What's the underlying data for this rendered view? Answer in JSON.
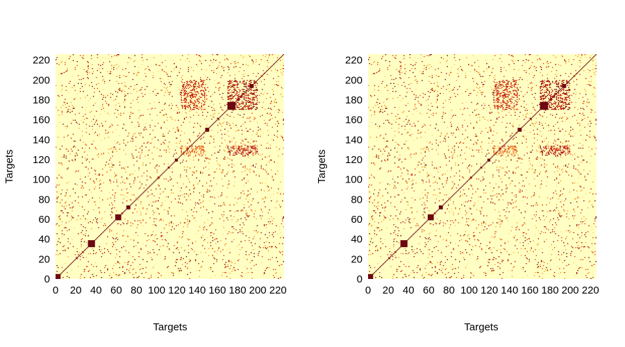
{
  "chart_data": [
    {
      "type": "heatmap",
      "panel": "left",
      "xlabel": "Targets",
      "ylabel": "Targets",
      "xlim": [
        0,
        226
      ],
      "ylim": [
        0,
        226
      ],
      "xticks": [
        0,
        20,
        40,
        60,
        80,
        100,
        120,
        140,
        160,
        180,
        200,
        220
      ],
      "yticks": [
        0,
        20,
        40,
        60,
        80,
        100,
        120,
        140,
        160,
        180,
        200,
        220
      ],
      "colormap": [
        "#ffffc4",
        "#fcd96a",
        "#f79a2a",
        "#e3451b",
        "#b5120f",
        "#6e0711"
      ],
      "diagonal": true,
      "dark_blocks": [
        [
          0,
          5
        ],
        [
          32,
          39
        ],
        [
          59,
          65
        ],
        [
          70,
          74
        ],
        [
          118,
          121
        ],
        [
          148,
          152
        ],
        [
          170,
          178
        ],
        [
          192,
          196
        ]
      ],
      "hot_clusters": [
        {
          "x": [
            124,
            148
          ],
          "y": [
            170,
            200
          ],
          "level": 0.78
        },
        {
          "x": [
            170,
            200
          ],
          "y": [
            170,
            200
          ],
          "level": 0.9
        },
        {
          "x": [
            170,
            200
          ],
          "y": [
            124,
            134
          ],
          "level": 0.85
        },
        {
          "x": [
            124,
            148
          ],
          "y": [
            124,
            134
          ],
          "level": 0.6
        }
      ]
    },
    {
      "type": "heatmap",
      "panel": "right",
      "xlabel": "Targets",
      "ylabel": "Targets",
      "xlim": [
        0,
        226
      ],
      "ylim": [
        0,
        226
      ],
      "xticks": [
        0,
        20,
        40,
        60,
        80,
        100,
        120,
        140,
        160,
        180,
        200,
        220
      ],
      "yticks": [
        0,
        20,
        40,
        60,
        80,
        100,
        120,
        140,
        160,
        180,
        200,
        220
      ],
      "colormap": [
        "#ffffc4",
        "#fcd96a",
        "#f79a2a",
        "#e3451b",
        "#b5120f",
        "#6e0711"
      ],
      "diagonal": true,
      "dark_blocks": [
        [
          0,
          5
        ],
        [
          32,
          39
        ],
        [
          59,
          65
        ],
        [
          70,
          74
        ],
        [
          118,
          121
        ],
        [
          148,
          152
        ],
        [
          170,
          178
        ],
        [
          192,
          196
        ]
      ],
      "hot_clusters": [
        {
          "x": [
            124,
            148
          ],
          "y": [
            170,
            200
          ],
          "level": 0.78
        },
        {
          "x": [
            170,
            200
          ],
          "y": [
            170,
            200
          ],
          "level": 0.9
        },
        {
          "x": [
            170,
            200
          ],
          "y": [
            124,
            134
          ],
          "level": 0.85
        },
        {
          "x": [
            124,
            148
          ],
          "y": [
            124,
            134
          ],
          "level": 0.6
        }
      ]
    }
  ]
}
